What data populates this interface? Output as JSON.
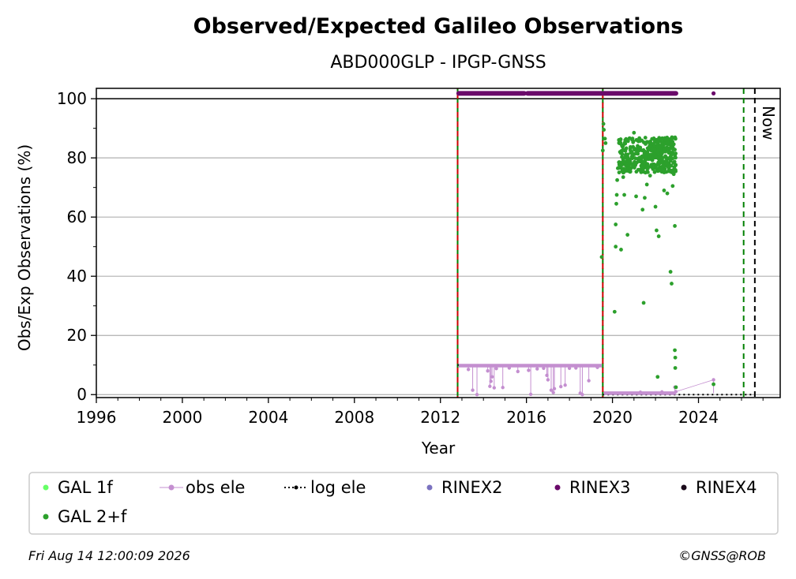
{
  "chart_data": {
    "type": "scatter",
    "title": "Observed/Expected Galileo Observations",
    "subtitle": "ABD000GLP - IPGP-GNSS",
    "xlabel": "Year",
    "ylabel": "Obs/Exp Observations (%)",
    "xlim": [
      1996,
      2027.8
    ],
    "ylim": [
      -1,
      103.5
    ],
    "xticks": [
      1996,
      2000,
      2004,
      2008,
      2012,
      2016,
      2020,
      2024
    ],
    "yticks": [
      0,
      20,
      40,
      60,
      80,
      100
    ],
    "grid": "horizontal",
    "legend_position": "bottom",
    "legend": [
      {
        "label": "GAL 1f",
        "color": "#66ff66",
        "marker": "dot"
      },
      {
        "label": "obs ele",
        "color": "#c48fd0",
        "marker": "line-dot"
      },
      {
        "label": "log ele",
        "color": "#000000",
        "marker": "dotted-line"
      },
      {
        "label": "RINEX2",
        "color": "#7b72c0",
        "marker": "dot"
      },
      {
        "label": "RINEX3",
        "color": "#6a0a6a",
        "marker": "dot"
      },
      {
        "label": "RINEX4",
        "color": "#1a0a1a",
        "marker": "dot"
      },
      {
        "label": "GAL 2+f",
        "color": "#2ca02c",
        "marker": "dot"
      }
    ],
    "vertical_lines": [
      {
        "x": 2012.8,
        "style": "dashed",
        "colors": [
          "#008000",
          "#cc0000"
        ]
      },
      {
        "x": 2019.55,
        "style": "dashed",
        "colors": [
          "#008000",
          "#cc0000"
        ]
      },
      {
        "x": 2026.1,
        "style": "dashed",
        "colors": [
          "#008000"
        ]
      },
      {
        "x": 2026.62,
        "style": "dashed",
        "colors": [
          "#000000"
        ],
        "label": "Now"
      }
    ],
    "series": [
      {
        "name": "RINEX3",
        "segments": [
          {
            "x_start": 2012.85,
            "x_end": 2015.9,
            "y": 101.8
          },
          {
            "x_start": 2016.05,
            "x_end": 2019.5,
            "y": 101.8
          },
          {
            "x_start": 2019.6,
            "x_end": 2022.95,
            "y": 101.8
          }
        ],
        "points": [
          {
            "x": 2024.7,
            "y": 101.8
          }
        ]
      },
      {
        "name": "log ele",
        "steps": [
          {
            "x_start": 2012.8,
            "x_end": 2019.55,
            "y": 10
          },
          {
            "x_start": 2019.55,
            "x_end": 2026.62,
            "y": 0
          }
        ]
      },
      {
        "name": "obs ele",
        "baseline": [
          {
            "x_start": 2012.85,
            "x_end": 2019.5,
            "y": 9.8
          },
          {
            "x_start": 2019.6,
            "x_end": 2022.95,
            "y": 0.5
          }
        ],
        "points": [
          {
            "x": 2013.3,
            "y": 8.5
          },
          {
            "x": 2013.5,
            "y": 1.5
          },
          {
            "x": 2013.7,
            "y": 0.0
          },
          {
            "x": 2014.2,
            "y": 8.0
          },
          {
            "x": 2014.3,
            "y": 2.8
          },
          {
            "x": 2014.35,
            "y": 4.5
          },
          {
            "x": 2014.4,
            "y": 6.0
          },
          {
            "x": 2014.5,
            "y": 2.3
          },
          {
            "x": 2014.6,
            "y": 8.8
          },
          {
            "x": 2014.9,
            "y": 2.4
          },
          {
            "x": 2015.2,
            "y": 9.0
          },
          {
            "x": 2015.6,
            "y": 7.8
          },
          {
            "x": 2016.1,
            "y": 8.2
          },
          {
            "x": 2016.2,
            "y": 0.1
          },
          {
            "x": 2016.5,
            "y": 8.7
          },
          {
            "x": 2016.8,
            "y": 8.9
          },
          {
            "x": 2016.95,
            "y": 6.5
          },
          {
            "x": 2017.0,
            "y": 5.0
          },
          {
            "x": 2017.15,
            "y": 1.5
          },
          {
            "x": 2017.25,
            "y": 0.7
          },
          {
            "x": 2017.3,
            "y": 2.0
          },
          {
            "x": 2017.6,
            "y": 2.7
          },
          {
            "x": 2017.8,
            "y": 3.2
          },
          {
            "x": 2018.0,
            "y": 8.9
          },
          {
            "x": 2018.3,
            "y": 9.0
          },
          {
            "x": 2018.5,
            "y": 0.5
          },
          {
            "x": 2018.6,
            "y": 0.0
          },
          {
            "x": 2018.9,
            "y": 4.7
          },
          {
            "x": 2019.3,
            "y": 9.2
          },
          {
            "x": 2021.3,
            "y": 0.8
          },
          {
            "x": 2022.3,
            "y": 0.9
          },
          {
            "x": 2022.9,
            "y": 2.5
          },
          {
            "x": 2022.95,
            "y": 1.0
          },
          {
            "x": 2024.7,
            "y": 5.0
          }
        ]
      },
      {
        "name": "GAL 2+f",
        "points": [
          {
            "x": 2019.5,
            "y": 46.5
          },
          {
            "x": 2019.55,
            "y": 82.5
          },
          {
            "x": 2019.58,
            "y": 91.5
          },
          {
            "x": 2019.6,
            "y": 89.5
          },
          {
            "x": 2019.65,
            "y": 86.5
          },
          {
            "x": 2019.68,
            "y": 85.0
          },
          {
            "x": 2020.1,
            "y": 28.0
          },
          {
            "x": 2020.15,
            "y": 50.0
          },
          {
            "x": 2020.15,
            "y": 57.5
          },
          {
            "x": 2020.18,
            "y": 64.5
          },
          {
            "x": 2020.2,
            "y": 67.5
          },
          {
            "x": 2020.22,
            "y": 72.5
          },
          {
            "x": 2020.25,
            "y": 76.5
          },
          {
            "x": 2020.3,
            "y": 78.5
          },
          {
            "x": 2020.35,
            "y": 82.0
          },
          {
            "x": 2020.4,
            "y": 49.0
          },
          {
            "x": 2020.5,
            "y": 73.5
          },
          {
            "x": 2020.55,
            "y": 67.5
          },
          {
            "x": 2020.7,
            "y": 54.0
          },
          {
            "x": 2020.8,
            "y": 79.5
          },
          {
            "x": 2020.9,
            "y": 80.5
          },
          {
            "x": 2021.0,
            "y": 88.5
          },
          {
            "x": 2021.1,
            "y": 67.0
          },
          {
            "x": 2021.2,
            "y": 76.0
          },
          {
            "x": 2021.3,
            "y": 86.0
          },
          {
            "x": 2021.4,
            "y": 62.5
          },
          {
            "x": 2021.45,
            "y": 31.0
          },
          {
            "x": 2021.5,
            "y": 66.5
          },
          {
            "x": 2021.6,
            "y": 71.0
          },
          {
            "x": 2021.75,
            "y": 74.0
          },
          {
            "x": 2021.9,
            "y": 81.0
          },
          {
            "x": 2022.0,
            "y": 63.5
          },
          {
            "x": 2022.05,
            "y": 55.5
          },
          {
            "x": 2022.1,
            "y": 6.0
          },
          {
            "x": 2022.15,
            "y": 53.5
          },
          {
            "x": 2022.3,
            "y": 77.0
          },
          {
            "x": 2022.4,
            "y": 69.0
          },
          {
            "x": 2022.55,
            "y": 68.0
          },
          {
            "x": 2022.7,
            "y": 41.5
          },
          {
            "x": 2022.7,
            "y": 79.0
          },
          {
            "x": 2022.75,
            "y": 37.5
          },
          {
            "x": 2022.8,
            "y": 70.5
          },
          {
            "x": 2022.85,
            "y": 74.5
          },
          {
            "x": 2022.9,
            "y": 57.0
          },
          {
            "x": 2022.9,
            "y": 15.0
          },
          {
            "x": 2022.92,
            "y": 12.5
          },
          {
            "x": 2022.92,
            "y": 9.0
          },
          {
            "x": 2022.95,
            "y": 2.5
          },
          {
            "x": 2024.7,
            "y": 3.5
          }
        ],
        "dense_band": {
          "x_start": 2020.3,
          "x_end": 2022.95,
          "y_min": 75,
          "y_max": 87,
          "peak_x": 2021.1,
          "peak_y": 88.5
        }
      },
      {
        "name": "GAL 1f",
        "points": []
      },
      {
        "name": "RINEX2",
        "points": []
      },
      {
        "name": "RINEX4",
        "points": []
      }
    ]
  },
  "footer": {
    "timestamp": "Fri Aug 14 12:00:09 2026",
    "credit": "©GNSS@ROB"
  }
}
